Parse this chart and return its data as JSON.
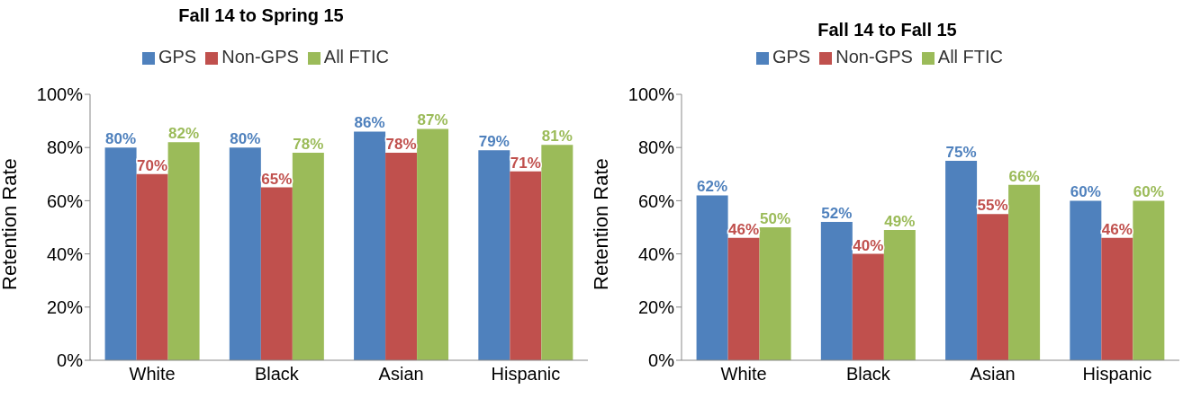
{
  "chart_data": [
    {
      "type": "bar",
      "title": "Fall 14 to Spring 15",
      "ylabel": "Retention Rate",
      "categories": [
        "White",
        "Black",
        "Asian",
        "Hispanic"
      ],
      "ylim": [
        0,
        100
      ],
      "yticks": [
        {
          "value": 0,
          "label": "0%"
        },
        {
          "value": 20,
          "label": "20%"
        },
        {
          "value": 40,
          "label": "40%"
        },
        {
          "value": 60,
          "label": "60%"
        },
        {
          "value": 80,
          "label": "80%"
        },
        {
          "value": 100,
          "label": "100%"
        }
      ],
      "grid": false,
      "legend": "top",
      "series": [
        {
          "name": "GPS",
          "color": "#4f81bd",
          "values": [
            80,
            80,
            86,
            79
          ],
          "value_labels": [
            "80%",
            "80%",
            "86%",
            "79%"
          ]
        },
        {
          "name": "Non-GPS",
          "color": "#c0504d",
          "values": [
            70,
            65,
            78,
            71
          ],
          "value_labels": [
            "70%",
            "65%",
            "78%",
            "71%"
          ]
        },
        {
          "name": "All FTIC",
          "color": "#9bbb59",
          "values": [
            82,
            78,
            87,
            81
          ],
          "value_labels": [
            "82%",
            "78%",
            "87%",
            "81%"
          ]
        }
      ]
    },
    {
      "type": "bar",
      "title": "Fall 14 to Fall 15",
      "ylabel": "Retention Rate",
      "categories": [
        "White",
        "Black",
        "Asian",
        "Hispanic"
      ],
      "ylim": [
        0,
        100
      ],
      "yticks": [
        {
          "value": 0,
          "label": "0%"
        },
        {
          "value": 20,
          "label": "20%"
        },
        {
          "value": 40,
          "label": "40%"
        },
        {
          "value": 60,
          "label": "60%"
        },
        {
          "value": 80,
          "label": "80%"
        },
        {
          "value": 100,
          "label": "100%"
        }
      ],
      "grid": false,
      "legend": "top",
      "series": [
        {
          "name": "GPS",
          "color": "#4f81bd",
          "values": [
            62,
            52,
            75,
            60
          ],
          "value_labels": [
            "62%",
            "52%",
            "75%",
            "60%"
          ]
        },
        {
          "name": "Non-GPS",
          "color": "#c0504d",
          "values": [
            46,
            40,
            55,
            46
          ],
          "value_labels": [
            "46%",
            "40%",
            "55%",
            "46%"
          ]
        },
        {
          "name": "All FTIC",
          "color": "#9bbb59",
          "values": [
            50,
            49,
            66,
            60
          ],
          "value_labels": [
            "50%",
            "49%",
            "66%",
            "60%"
          ]
        }
      ]
    }
  ]
}
